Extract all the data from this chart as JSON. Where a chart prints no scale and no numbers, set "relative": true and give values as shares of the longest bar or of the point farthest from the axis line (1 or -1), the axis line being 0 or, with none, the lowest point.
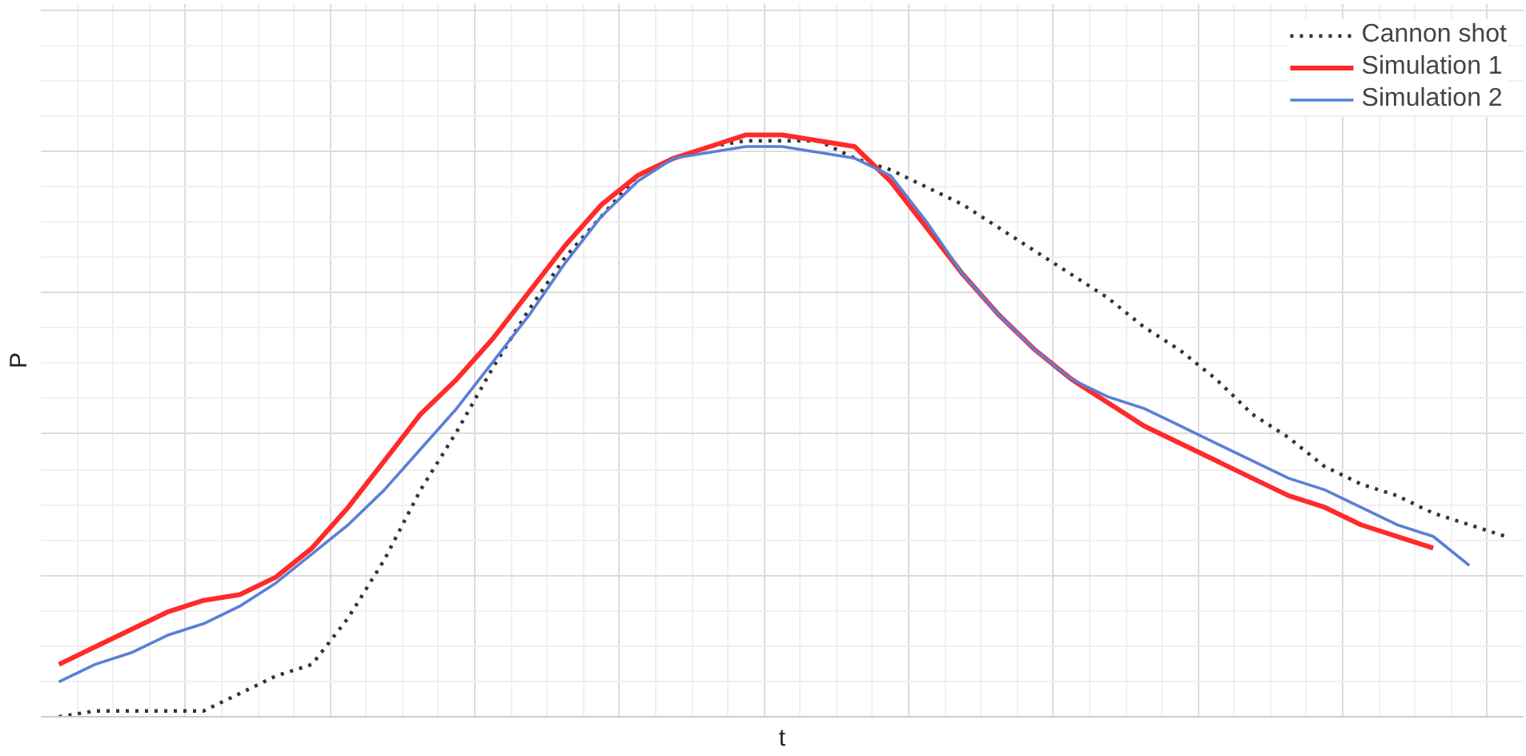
{
  "chart_data": {
    "type": "line",
    "xlabel": "t",
    "ylabel": "P",
    "relative": true,
    "grid": true,
    "legend": "top right",
    "categories": [
      null,
      null,
      null,
      null,
      null,
      null,
      null,
      null,
      null,
      null,
      null,
      null,
      null,
      null,
      null,
      null,
      null,
      null,
      null,
      null,
      null,
      null,
      null,
      null,
      null,
      null,
      null,
      null,
      null,
      null,
      null,
      null,
      null,
      null,
      null,
      null,
      null,
      null,
      null,
      null,
      null
    ],
    "series": [
      {
        "name": "Cannon shot",
        "color": "#333333",
        "line_style": "dotted",
        "values": [
          0,
          0.01,
          0.01,
          0.01,
          0.01,
          0.04,
          0.07,
          0.09,
          0.17,
          0.27,
          0.39,
          0.49,
          0.6,
          0.7,
          0.79,
          0.86,
          0.93,
          0.96,
          0.98,
          0.99,
          0.99,
          0.99,
          0.96,
          0.94,
          0.91,
          0.88,
          0.84,
          0.8,
          0.76,
          0.72,
          0.67,
          0.63,
          0.58,
          0.52,
          0.48,
          0.43,
          0.4,
          0.38,
          0.35,
          0.33,
          0.31
        ]
      },
      {
        "name": "Simulation 1",
        "color": "#ff2a2a",
        "line_style": "solid",
        "values": [
          0.09,
          0.12,
          0.15,
          0.18,
          0.2,
          0.21,
          0.24,
          0.29,
          0.36,
          0.44,
          0.52,
          0.58,
          0.65,
          0.73,
          0.81,
          0.88,
          0.93,
          0.96,
          0.98,
          1.0,
          1.0,
          0.99,
          0.98,
          0.92,
          0.84,
          0.76,
          0.69,
          0.63,
          0.58,
          0.54,
          0.5,
          0.47,
          0.44,
          0.41,
          0.38,
          0.36,
          0.33,
          0.31,
          0.29,
          null,
          null
        ]
      },
      {
        "name": "Simulation 2",
        "color": "#5b7fd6",
        "line_style": "solid",
        "values": [
          0.06,
          0.09,
          0.11,
          0.14,
          0.16,
          0.19,
          0.23,
          0.28,
          0.33,
          0.39,
          0.46,
          0.53,
          0.61,
          0.69,
          0.78,
          0.86,
          0.92,
          0.96,
          0.97,
          0.98,
          0.98,
          0.97,
          0.96,
          0.93,
          0.85,
          0.76,
          0.69,
          0.63,
          0.58,
          0.55,
          0.53,
          0.5,
          0.47,
          0.44,
          0.41,
          0.39,
          0.36,
          0.33,
          0.31,
          0.26,
          null
        ]
      }
    ]
  }
}
